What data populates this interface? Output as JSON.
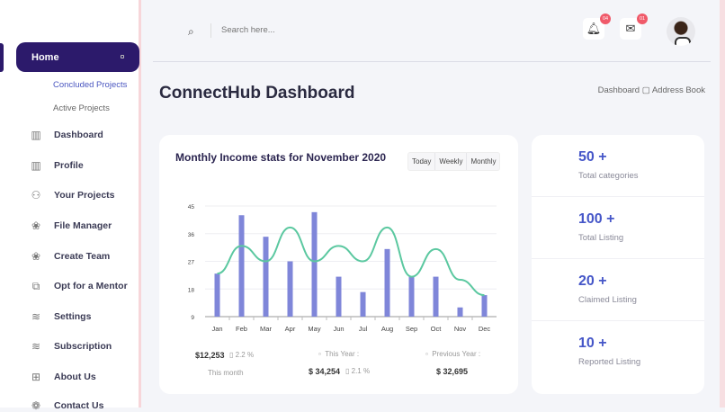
{
  "sidebar": {
    "home": "Home",
    "sub": [
      "Concluded Projects",
      "Active Projects"
    ],
    "items": [
      {
        "label": "Dashboard",
        "icon": "layout-icon"
      },
      {
        "label": "Profile",
        "icon": "layout-icon"
      },
      {
        "label": "Your Projects",
        "icon": "shapes-icon"
      },
      {
        "label": "File Manager",
        "icon": "cubes-icon"
      },
      {
        "label": "Create Team",
        "icon": "cubes-icon"
      },
      {
        "label": "Opt for a Mentor",
        "icon": "mentor-icon"
      },
      {
        "label": "Settings",
        "icon": "layers-icon"
      },
      {
        "label": "Subscription",
        "icon": "layers-icon"
      },
      {
        "label": "About Us",
        "icon": "plus-square-icon"
      },
      {
        "label": "Contact Us",
        "icon": "contact-icon"
      }
    ]
  },
  "header": {
    "search_placeholder": "Search here...",
    "notifications": "04",
    "messages": "01"
  },
  "page": {
    "title": "ConnectHub Dashboard",
    "breadcrumb": [
      "Dashboard",
      "Address Book"
    ]
  },
  "chart_card": {
    "title": "Monthly Income stats for November 2020",
    "tabs": [
      "Today",
      "Weekly",
      "Monthly"
    ],
    "this_month_value": "$12,253",
    "this_month_change": "2.2 %",
    "this_month_label": "This month",
    "this_year_label": "This Year :",
    "this_year_value": "$ 34,254",
    "this_year_change": "2.1 %",
    "prev_year_label": "Previous Year :",
    "prev_year_value": "$ 32,695"
  },
  "chart_data": {
    "type": "bar",
    "categories": [
      "Jan",
      "Feb",
      "Mar",
      "Apr",
      "May",
      "Jun",
      "Jul",
      "Aug",
      "Sep",
      "Oct",
      "Nov",
      "Dec"
    ],
    "series": [
      {
        "type": "bar",
        "values": [
          23,
          42,
          35,
          27,
          43,
          22,
          17,
          31,
          22,
          22,
          12,
          16
        ],
        "color": "#7f86d9"
      },
      {
        "type": "line",
        "smooth": true,
        "values": [
          23,
          32,
          27,
          38,
          27,
          32,
          27,
          38,
          22,
          31,
          21,
          16
        ],
        "color": "#5bc8a0"
      }
    ],
    "ylim": [
      9,
      45
    ],
    "yticks": [
      9,
      18,
      27,
      36,
      45
    ],
    "grid": true
  },
  "stats": [
    {
      "value": "50 +",
      "label": "Total categories"
    },
    {
      "value": "100 +",
      "label": "Total Listing"
    },
    {
      "value": "20 +",
      "label": "Claimed Listing"
    },
    {
      "value": "10 +",
      "label": "Reported Listing"
    }
  ],
  "colors": {
    "primary": "#2c1a6b",
    "accent": "#4556c8",
    "badge": "#f05a6a"
  }
}
